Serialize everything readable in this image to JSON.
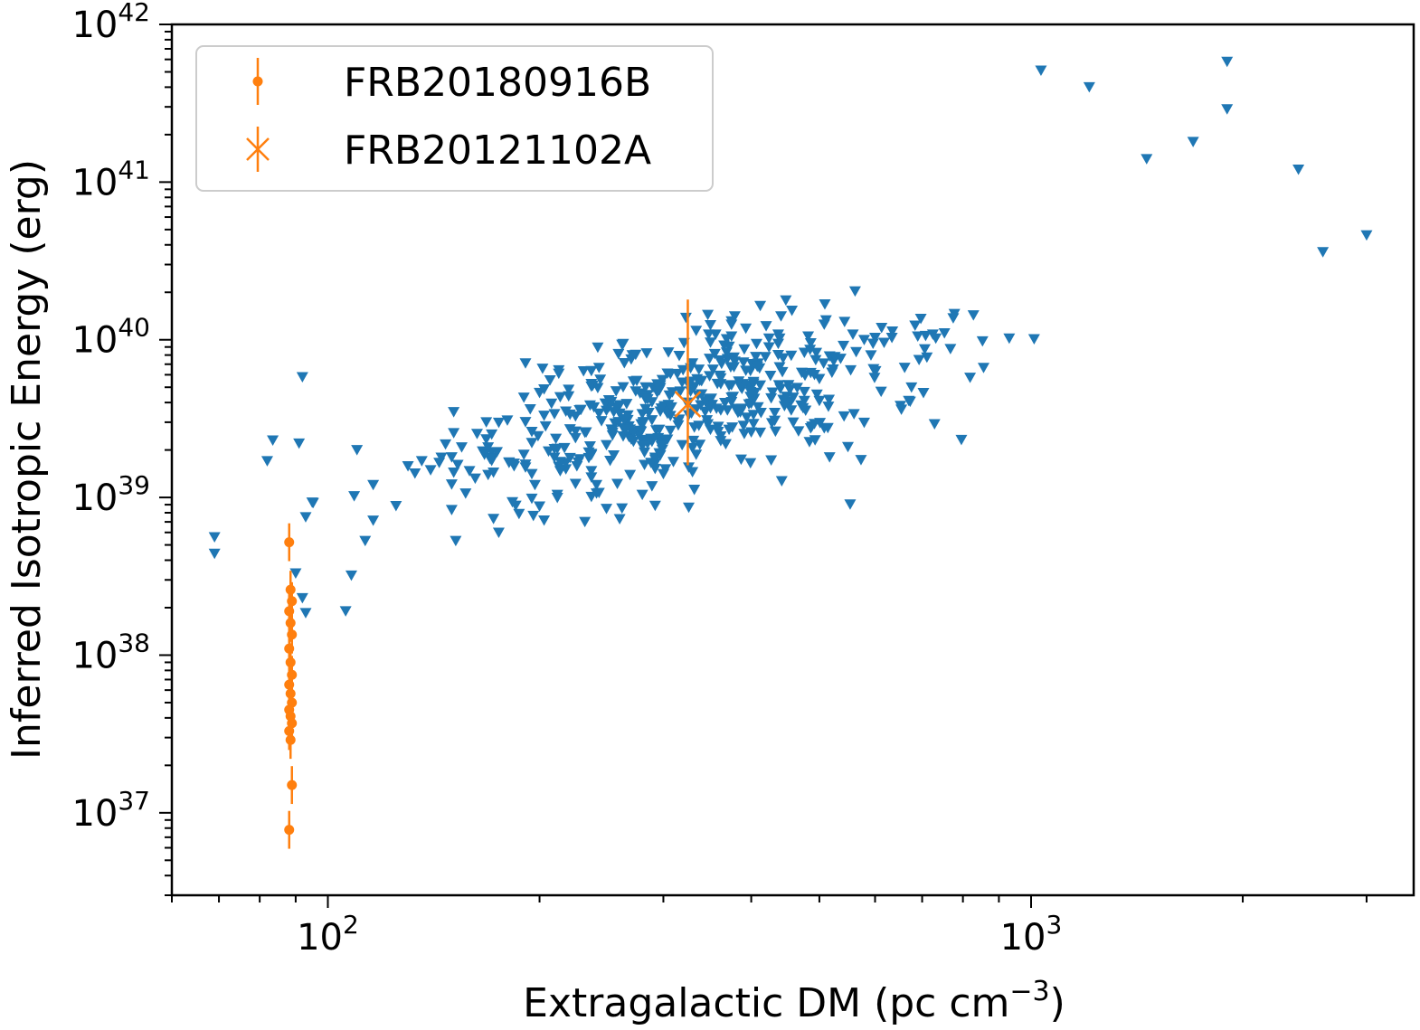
{
  "chart_data": {
    "type": "scatter",
    "xlabel": "Extragalactic DM (pc cm",
    "xlabel_sup": "−3",
    "xlabel_end": ")",
    "ylabel": "Inferred Isotropic Energy (erg)",
    "x_scale": "log",
    "y_scale": "log",
    "xlim": [
      60,
      3500
    ],
    "ylim": [
      3e+36,
      1e+42
    ],
    "grid": false,
    "legend_position": "upper-left",
    "x_ticks": [
      {
        "base": "10",
        "exp": "2",
        "value": 100
      },
      {
        "base": "10",
        "exp": "3",
        "value": 1000
      }
    ],
    "y_ticks": [
      {
        "base": "10",
        "exp": "37",
        "value": 1e+37
      },
      {
        "base": "10",
        "exp": "38",
        "value": 1e+38
      },
      {
        "base": "10",
        "exp": "39",
        "value": 1e+39
      },
      {
        "base": "10",
        "exp": "40",
        "value": 1e+40
      },
      {
        "base": "10",
        "exp": "41",
        "value": 1e+41
      },
      {
        "base": "10",
        "exp": "42",
        "value": 1e+42
      }
    ],
    "colors": {
      "upper_limits": "#1f77b4",
      "repeaters": "#ff7f0e"
    },
    "series": [
      {
        "name": "FRB20180916B",
        "marker": "point-with-errorbar",
        "x": 88.5,
        "y": [
          5.2e+38,
          2.6e+38,
          2.2e+38,
          1.9e+38,
          1.6e+38,
          1.35e+38,
          1.1e+38,
          9e+37,
          7.5e+37,
          6.5e+37,
          5.7e+37,
          5e+37,
          4.5e+37,
          4.1e+37,
          3.7e+37,
          3.3e+37,
          2.9e+37,
          1.5e+37,
          7.8e+36
        ],
        "err_dex": 0.12
      },
      {
        "name": "FRB20121102A",
        "marker": "x-with-errorbar",
        "x": [
          325
        ],
        "y": [
          3.9e+39
        ],
        "yerr_low": [
          1.6e+39
        ],
        "yerr_high": [
          1.8e+40
        ]
      }
    ],
    "upper_limits": {
      "marker": "down-triangle",
      "x": [],
      "y": []
    }
  }
}
